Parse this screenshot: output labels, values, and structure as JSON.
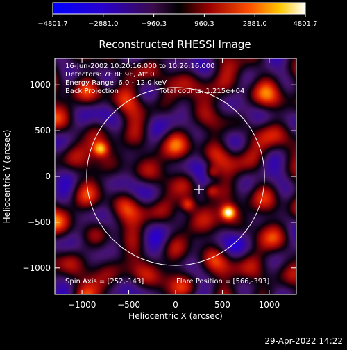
{
  "chart_data": {
    "type": "heatmap",
    "title": "Reconstructed RHESSI Image",
    "xlabel": "Heliocentric X (arcsec)",
    "ylabel": "Heliocentric Y (arcsec)",
    "xlim": [
      -1290,
      1290
    ],
    "ylim": [
      -1290,
      1290
    ],
    "x_ticks": [
      -1000,
      -500,
      0,
      500,
      1000
    ],
    "y_ticks": [
      -1000,
      -500,
      0,
      500,
      1000
    ],
    "colorbar": {
      "range": [
        -4801.7,
        4801.7
      ],
      "tick_labels": [
        "-4801.7",
        "-2881.0",
        "-960.3",
        "960.3",
        "2881.0",
        "4801.7"
      ]
    },
    "annotations": [
      "16-Jun-2002 10:20:16.000 to 10:26:16.000",
      "Detectors: 7F 8F 9F, Att 0",
      "Energy Range: 6.0 - 12.0 keV",
      "Back Projection",
      "Total counts: 1.215e+04"
    ],
    "spin_axis_label": "Spin Axis = [252,-143]",
    "flare_position_label": "Flare Position = [566,-393]",
    "spin_axis": [
      252,
      -143
    ],
    "flare_position": [
      566,
      -393
    ],
    "solar_disk_radius_arcsec": 950,
    "sources": [
      {
        "x": 566,
        "y": -393,
        "intensity": 4800
      },
      {
        "x": -800,
        "y": 300,
        "intensity": 3500
      },
      {
        "x": 130,
        "y": -310,
        "intensity": 3000
      },
      {
        "x": 380,
        "y": 40,
        "intensity": 2600
      },
      {
        "x": 380,
        "y": -150,
        "intensity": 2400
      }
    ]
  },
  "footer": {
    "timestamp": "29-Apr-2022 14:22"
  }
}
